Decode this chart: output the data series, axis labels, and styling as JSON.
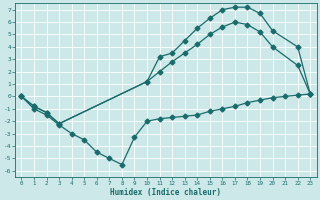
{
  "bg_color": "#cce8e8",
  "grid_color": "#b0d0d0",
  "line_color": "#1a6b6b",
  "line_width": 0.9,
  "marker": "D",
  "marker_size": 2.5,
  "xlabel": "Humidex (Indice chaleur)",
  "xlim": [
    -0.5,
    23.5
  ],
  "ylim": [
    -6.5,
    7.5
  ],
  "xticks": [
    0,
    1,
    2,
    3,
    4,
    5,
    6,
    7,
    8,
    9,
    10,
    11,
    12,
    13,
    14,
    15,
    16,
    17,
    18,
    19,
    20,
    21,
    22,
    23
  ],
  "yticks": [
    -6,
    -5,
    -4,
    -3,
    -2,
    -1,
    0,
    1,
    2,
    3,
    4,
    5,
    6,
    7
  ],
  "line1_x": [
    0,
    1,
    2,
    3,
    10,
    11,
    12,
    13,
    14,
    15,
    16,
    17,
    18,
    19,
    20,
    22,
    23
  ],
  "line1_y": [
    0,
    -0.8,
    -1.3,
    -2.2,
    1.2,
    3.2,
    3.5,
    4.5,
    5.5,
    6.3,
    7.0,
    7.2,
    7.2,
    6.7,
    5.3,
    4.0,
    0.2
  ],
  "line2_x": [
    0,
    1,
    2,
    3,
    4,
    5,
    6,
    7,
    8,
    9,
    10,
    11,
    12,
    13,
    14,
    15,
    16,
    17,
    18,
    19,
    20,
    21,
    22,
    23
  ],
  "line2_y": [
    0,
    -1.0,
    -1.5,
    -2.3,
    -3.0,
    -3.5,
    -4.5,
    -5.0,
    -5.5,
    -3.3,
    -2.0,
    -1.8,
    -1.7,
    -1.6,
    -1.5,
    -1.2,
    -1.0,
    -0.8,
    -0.5,
    -0.3,
    -0.1,
    0.0,
    0.1,
    0.2
  ],
  "line3_x": [
    0,
    1,
    2,
    3,
    10,
    11,
    12,
    13,
    14,
    15,
    16,
    17,
    18,
    19,
    20,
    22,
    23
  ],
  "line3_y": [
    0,
    -0.8,
    -1.3,
    -2.2,
    1.2,
    2.0,
    2.8,
    3.5,
    4.2,
    5.0,
    5.6,
    6.0,
    5.8,
    5.2,
    4.0,
    2.5,
    0.2
  ]
}
